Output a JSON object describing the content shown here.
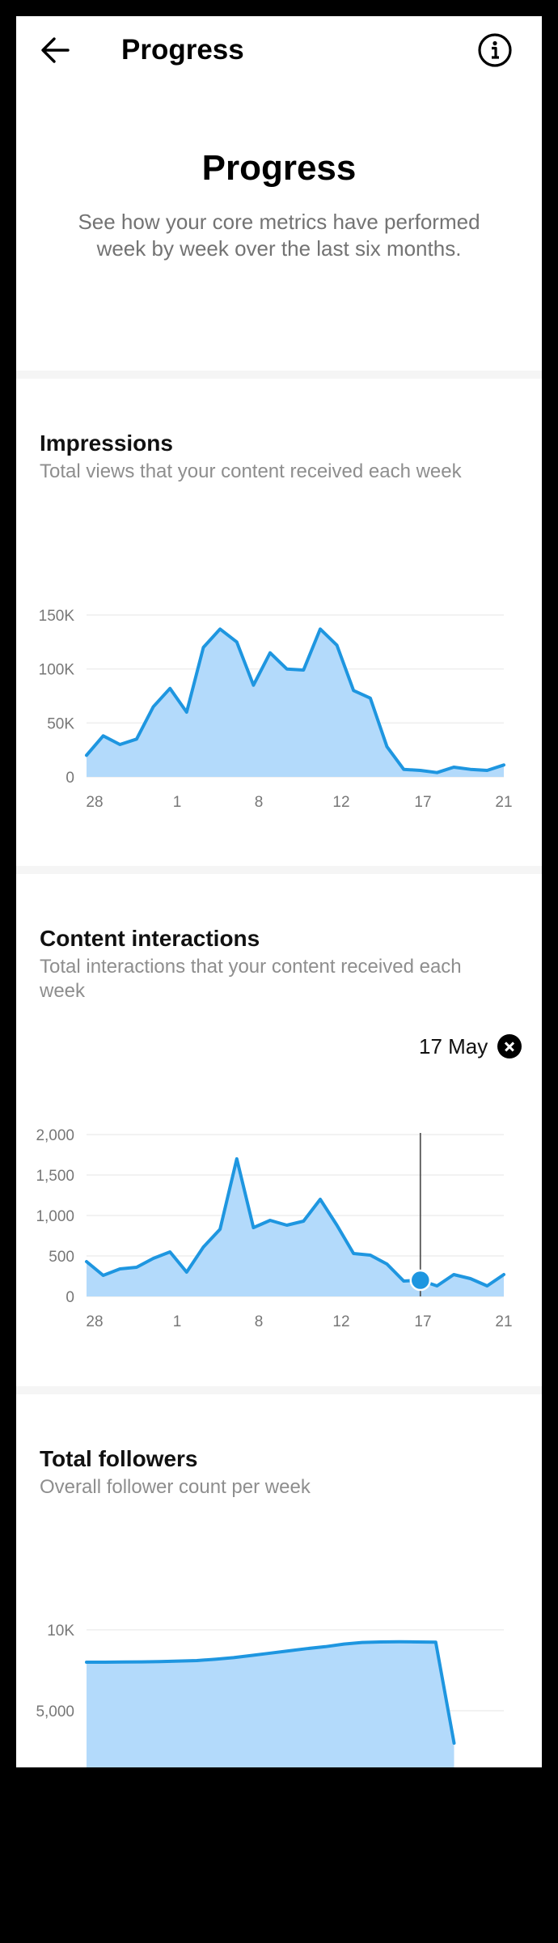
{
  "header": {
    "title": "Progress",
    "back_icon": "arrow-left-icon",
    "info_icon": "info-icon"
  },
  "hero": {
    "title": "Progress",
    "description": "See how your core metrics have performed week by week over the last six months."
  },
  "colors": {
    "accent": "#1E96E0",
    "fill": "#B3DAFB",
    "grid": "#EEEEEE"
  },
  "sections": {
    "impressions": {
      "title": "Impressions",
      "description": "Total views that your content received each week"
    },
    "interactions": {
      "title": "Content interactions",
      "description": "Total interactions that your content received each week",
      "selected_date": "17 May"
    },
    "followers": {
      "title": "Total followers",
      "description": "Overall follower count per week"
    }
  },
  "chart_data": [
    {
      "type": "area",
      "x_ticks": [
        "28",
        "1",
        "8",
        "12",
        "17",
        "21"
      ],
      "y_ticks": [
        "0",
        "50K",
        "100K",
        "150K"
      ],
      "ylim": [
        0,
        150000
      ],
      "values": [
        20000,
        38000,
        30000,
        35000,
        65000,
        82000,
        60000,
        120000,
        137000,
        125000,
        85000,
        115000,
        100000,
        99000,
        137000,
        122000,
        80000,
        73000,
        28000,
        7000,
        6000,
        4000,
        9000,
        7000,
        6000,
        11000
      ]
    },
    {
      "type": "area",
      "x_ticks": [
        "28",
        "1",
        "8",
        "12",
        "17",
        "21"
      ],
      "y_ticks": [
        "0",
        "500",
        "1,000",
        "1,500",
        "2,000"
      ],
      "ylim": [
        0,
        2000
      ],
      "values": [
        430,
        260,
        340,
        360,
        470,
        550,
        300,
        610,
        830,
        1700,
        850,
        940,
        880,
        930,
        1200,
        880,
        530,
        510,
        400,
        190,
        200,
        130,
        270,
        220,
        130,
        270
      ],
      "selected_index": 20
    },
    {
      "type": "area",
      "x_ticks": [],
      "y_ticks": [
        "5,000",
        "10K"
      ],
      "ylim": [
        0,
        10000
      ],
      "values": [
        8000,
        8000,
        8010,
        8020,
        8040,
        8070,
        8100,
        8180,
        8280,
        8420,
        8560,
        8700,
        8840,
        8960,
        9120,
        9220,
        9250,
        9260,
        9250,
        9240,
        3000
      ]
    }
  ]
}
